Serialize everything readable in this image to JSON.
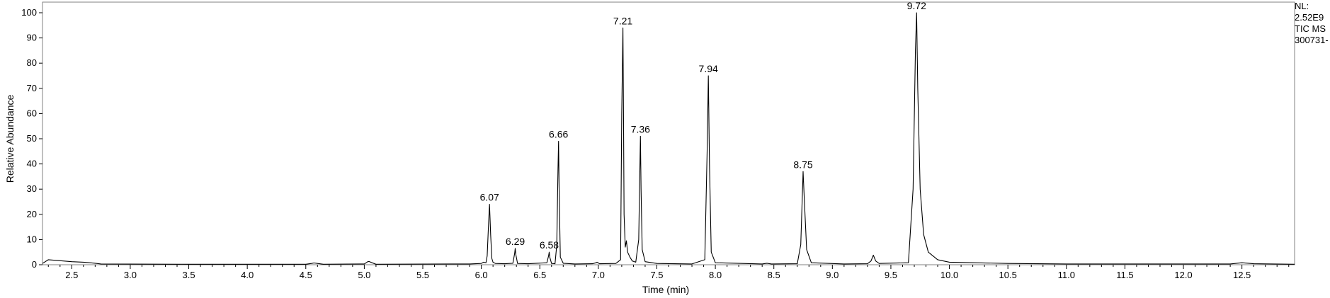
{
  "info_box": {
    "line1": "NL:",
    "line2": "2.52E9",
    "line3": "TIC  MS",
    "line4": "300731-"
  },
  "chart_data": {
    "type": "line",
    "title": "",
    "xlabel": "Time (min)",
    "ylabel": "Relative Abundance",
    "xlim": [
      2.25,
      12.95
    ],
    "ylim": [
      0,
      100
    ],
    "x_ticks": [
      2.5,
      3.0,
      3.5,
      4.0,
      4.5,
      5.0,
      5.5,
      6.0,
      6.5,
      7.0,
      7.5,
      8.0,
      8.5,
      9.0,
      9.5,
      10.0,
      10.5,
      11.0,
      11.5,
      12.0,
      12.5
    ],
    "x_tick_labels": [
      "2.5",
      "3.0",
      "3.5",
      "4.0",
      "4.5",
      "5.0",
      "5.5",
      "6.0",
      "6.5",
      "7.0",
      "7.5",
      "8.0",
      "8.5",
      "9.0",
      "9.5",
      "10.0",
      "10.5",
      "11.0",
      "11.5",
      "12.0",
      "12.5"
    ],
    "y_ticks": [
      0,
      10,
      20,
      30,
      40,
      50,
      60,
      70,
      80,
      90,
      100
    ],
    "y_tick_labels": [
      "0",
      "10",
      "20",
      "30",
      "40",
      "50",
      "60",
      "70",
      "80",
      "90",
      "100"
    ],
    "grid": false,
    "line_color": "#000000",
    "peaks": [
      {
        "rt": 6.07,
        "label": "6.07",
        "height": 24
      },
      {
        "rt": 6.29,
        "label": "6.29",
        "height": 6.5
      },
      {
        "rt": 6.58,
        "label": "6.58",
        "height": 5
      },
      {
        "rt": 6.66,
        "label": "6.66",
        "height": 49
      },
      {
        "rt": 7.21,
        "label": "7.21",
        "height": 94
      },
      {
        "rt": 7.36,
        "label": "7.36",
        "height": 51
      },
      {
        "rt": 7.94,
        "label": "7.94",
        "height": 75
      },
      {
        "rt": 8.75,
        "label": "8.75",
        "height": 37
      },
      {
        "rt": 9.72,
        "label": "9.72",
        "height": 100
      }
    ],
    "minor_peaks": [
      {
        "rt": 4.57,
        "height": 0.7
      },
      {
        "rt": 5.04,
        "height": 1.3
      },
      {
        "rt": 6.02,
        "height": 1.0
      },
      {
        "rt": 6.99,
        "height": 1.0
      },
      {
        "rt": 7.24,
        "height": 9.5
      },
      {
        "rt": 7.27,
        "height": 3.0
      },
      {
        "rt": 9.35,
        "height": 3.8
      }
    ],
    "series": [
      {
        "x": [
          2.25,
          2.3,
          2.4,
          2.5,
          2.6,
          2.7,
          2.75,
          3.5,
          4.5,
          4.55,
          4.57,
          4.6,
          4.65,
          5.0,
          5.03,
          5.04,
          5.06,
          5.1,
          5.9,
          6.0,
          6.02,
          6.04,
          6.05,
          6.06,
          6.07,
          6.08,
          6.09,
          6.1,
          6.12,
          6.2,
          6.27,
          6.285,
          6.29,
          6.295,
          6.31,
          6.4,
          6.56,
          6.575,
          6.58,
          6.585,
          6.6,
          6.63,
          6.645,
          6.655,
          6.66,
          6.665,
          6.675,
          6.7,
          6.8,
          6.95,
          6.98,
          6.99,
          7.01,
          7.15,
          7.19,
          7.2,
          7.21,
          7.215,
          7.22,
          7.23,
          7.24,
          7.25,
          7.27,
          7.29,
          7.32,
          7.345,
          7.355,
          7.36,
          7.365,
          7.375,
          7.4,
          7.5,
          7.8,
          7.91,
          7.93,
          7.94,
          7.95,
          7.965,
          8.0,
          8.4,
          8.44,
          8.48,
          8.7,
          8.73,
          8.745,
          8.75,
          8.76,
          8.78,
          8.82,
          9.1,
          9.3,
          9.33,
          9.35,
          9.37,
          9.4,
          9.65,
          9.69,
          9.71,
          9.72,
          9.73,
          9.75,
          9.78,
          9.82,
          9.9,
          10.0,
          10.5,
          11.0,
          12.4,
          12.5,
          12.6,
          12.95
        ],
        "y": [
          0.5,
          2.0,
          1.6,
          1.2,
          1.0,
          0.6,
          0.3,
          0.2,
          0.2,
          0.5,
          0.7,
          0.5,
          0.2,
          0.3,
          1.2,
          1.3,
          0.9,
          0.2,
          0.3,
          0.5,
          1.0,
          0.8,
          3.5,
          14,
          24,
          12,
          2.5,
          1.0,
          0.5,
          0.4,
          0.6,
          4.5,
          6.5,
          4.0,
          0.5,
          0.4,
          0.8,
          3.5,
          5.0,
          3.0,
          0.5,
          0.4,
          8,
          38,
          49,
          30,
          3,
          0.6,
          0.3,
          0.4,
          0.8,
          1.0,
          0.4,
          0.5,
          2.0,
          60,
          94,
          60,
          20,
          7,
          9.5,
          5,
          3.0,
          1.5,
          1.0,
          10,
          38,
          51,
          30,
          6,
          1.2,
          0.5,
          0.3,
          2.0,
          45,
          75,
          40,
          5,
          0.8,
          0.3,
          0.6,
          0.3,
          0.4,
          8,
          30,
          37,
          26,
          6,
          0.8,
          0.3,
          0.4,
          1.5,
          3.8,
          1.5,
          0.5,
          0.8,
          30,
          85,
          100,
          70,
          30,
          12,
          5,
          2,
          1.0,
          0.5,
          0.3,
          0.3,
          0.8,
          0.4,
          0.2
        ]
      }
    ]
  }
}
